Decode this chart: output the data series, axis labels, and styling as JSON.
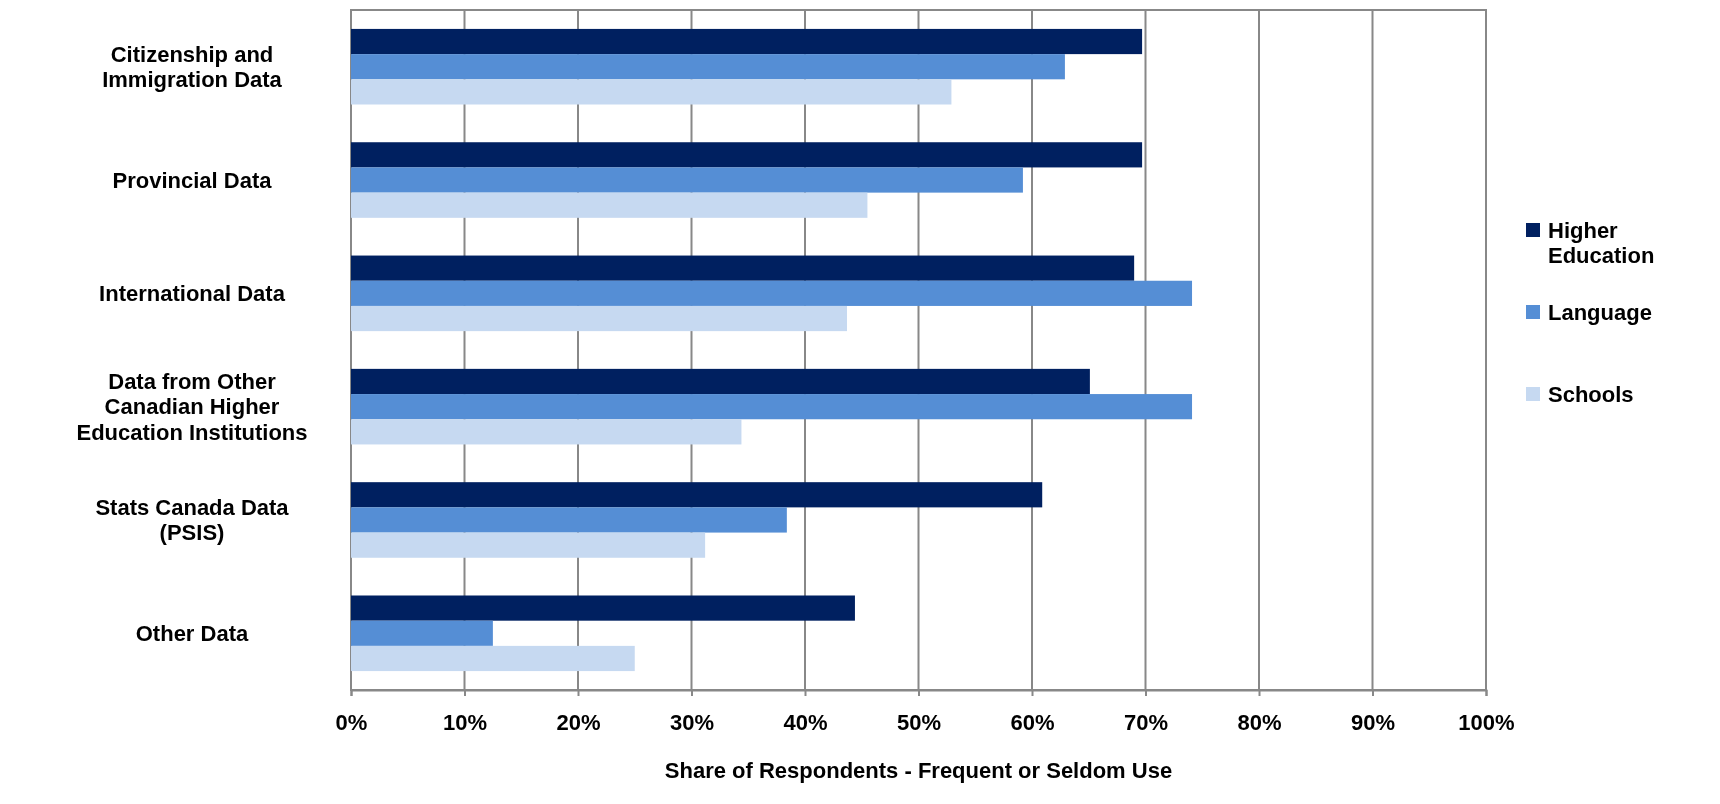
{
  "chart_data": {
    "type": "bar",
    "orientation": "horizontal",
    "xlabel": "Share of Respondents - Frequent or Seldom Use",
    "categories": [
      "Citizenship and Immigration Data",
      "Provincial Data",
      "International Data",
      "Data from Other Canadian Higher Education Institutions",
      "Stats Canada Data (PSIS)",
      "Other Data"
    ],
    "series": [
      {
        "name": "Higher Education",
        "color": "#002060",
        "values": [
          69.7,
          69.7,
          69.0,
          65.1,
          60.9,
          44.4
        ]
      },
      {
        "name": "Language",
        "color": "#558ed5",
        "values": [
          62.9,
          59.2,
          74.1,
          74.1,
          38.4,
          12.5
        ]
      },
      {
        "name": "Schools",
        "color": "#c6d9f1",
        "values": [
          52.9,
          45.5,
          43.7,
          34.4,
          31.2,
          25.0
        ]
      }
    ],
    "xlim": [
      0,
      100
    ],
    "xticks": [
      {
        "value": 0,
        "label": "0%"
      },
      {
        "value": 10,
        "label": "10%"
      },
      {
        "value": 20,
        "label": "20%"
      },
      {
        "value": 30,
        "label": "30%"
      },
      {
        "value": 40,
        "label": "40%"
      },
      {
        "value": 50,
        "label": "50%"
      },
      {
        "value": 60,
        "label": "60%"
      },
      {
        "value": 70,
        "label": "70%"
      },
      {
        "value": 80,
        "label": "80%"
      },
      {
        "value": 90,
        "label": "90%"
      },
      {
        "value": 100,
        "label": "100%"
      }
    ],
    "grid": "x",
    "legend": "right"
  }
}
